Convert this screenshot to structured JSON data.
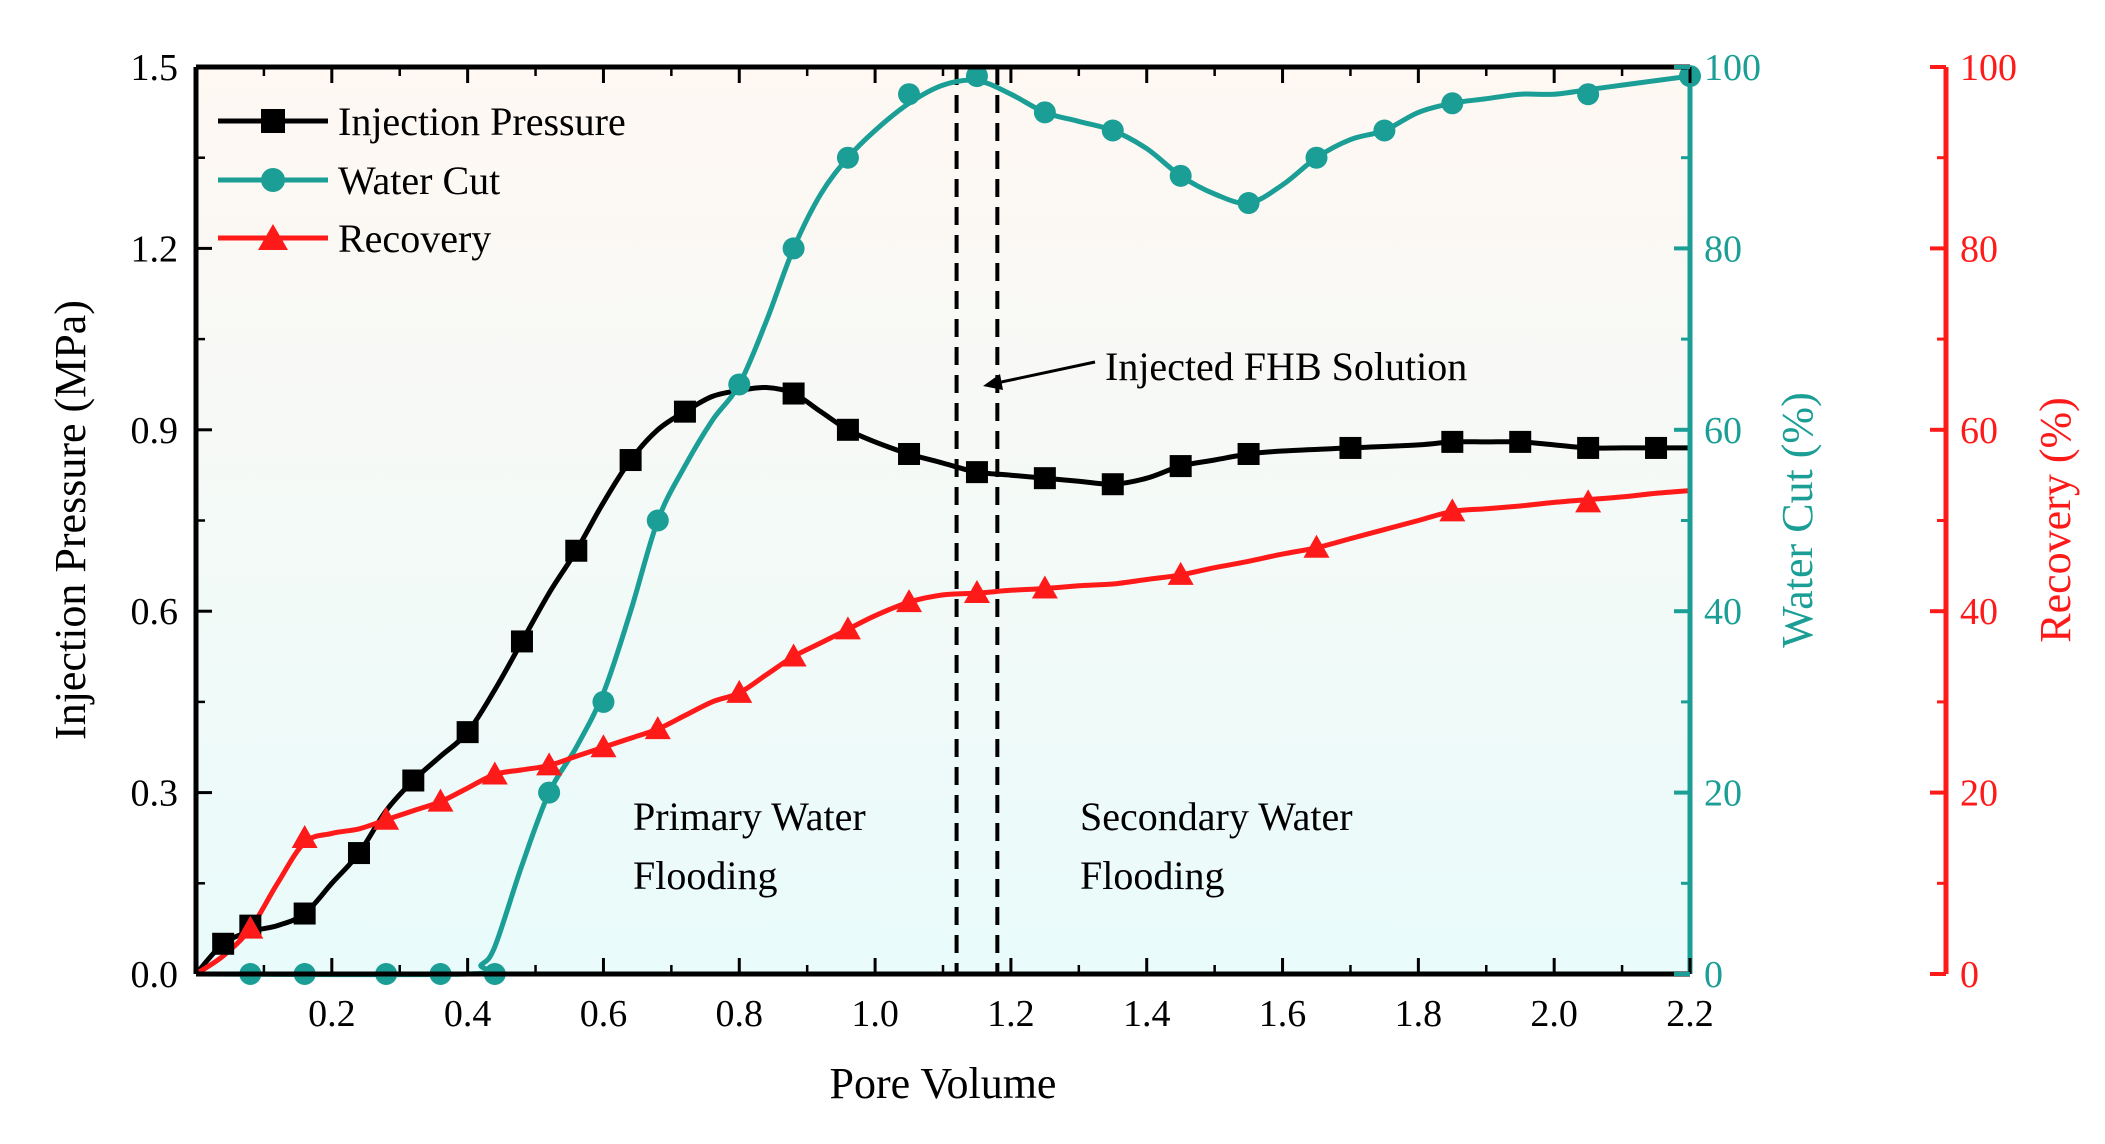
{
  "chart_data": {
    "type": "line",
    "title": "",
    "xlabel": "Pore Volume",
    "xlim": [
      0,
      2.2
    ],
    "xticks": [
      0.2,
      0.4,
      0.6,
      0.8,
      1.0,
      1.2,
      1.4,
      1.6,
      1.8,
      2.0,
      2.2
    ],
    "xtick_labels": [
      "0.2",
      "0.4",
      "0.6",
      "0.8",
      "1.0",
      "1.2",
      "1.4",
      "1.6",
      "1.8",
      "2.0",
      "2.2"
    ],
    "y_axes": {
      "left": {
        "label": "Injection Pressure (MPa)",
        "range": [
          0,
          1.5
        ],
        "ticks": [
          0.0,
          0.3,
          0.6,
          0.9,
          1.2,
          1.5
        ],
        "tick_labels": [
          "0.0",
          "0.3",
          "0.6",
          "0.9",
          "1.2",
          "1.5"
        ],
        "color": "#000000"
      },
      "right1": {
        "label": "Water Cut (%)",
        "range": [
          0,
          100
        ],
        "ticks": [
          0,
          20,
          40,
          60,
          80,
          100
        ],
        "tick_labels": [
          "0",
          "20",
          "40",
          "60",
          "80",
          "100"
        ],
        "color": "#1a9e95"
      },
      "right2": {
        "label": "Recovery (%)",
        "range": [
          0,
          100
        ],
        "ticks": [
          0,
          20,
          40,
          60,
          80,
          100
        ],
        "tick_labels": [
          "0",
          "20",
          "40",
          "60",
          "80",
          "100"
        ],
        "color": "#ff1a1a"
      }
    },
    "series": [
      {
        "name": "Injection Pressure",
        "axis": "left",
        "marker": "square",
        "color": "#000000",
        "x": [
          0.04,
          0.08,
          0.16,
          0.24,
          0.32,
          0.4,
          0.48,
          0.56,
          0.64,
          0.72,
          0.88,
          0.96,
          1.05,
          1.15,
          1.25,
          1.35,
          1.45,
          1.55,
          1.7,
          1.85,
          1.95,
          2.05,
          2.15
        ],
        "values": [
          0.05,
          0.08,
          0.1,
          0.2,
          0.32,
          0.4,
          0.55,
          0.7,
          0.85,
          0.93,
          0.96,
          0.9,
          0.86,
          0.83,
          0.82,
          0.81,
          0.84,
          0.86,
          0.87,
          0.88,
          0.88,
          0.87,
          0.87
        ],
        "curve_x": [
          0.0,
          0.04,
          0.08,
          0.12,
          0.16,
          0.2,
          0.24,
          0.28,
          0.32,
          0.36,
          0.4,
          0.44,
          0.48,
          0.52,
          0.56,
          0.6,
          0.64,
          0.68,
          0.72,
          0.76,
          0.8,
          0.84,
          0.88,
          0.92,
          0.96,
          1.0,
          1.05,
          1.1,
          1.15,
          1.2,
          1.25,
          1.3,
          1.35,
          1.4,
          1.45,
          1.5,
          1.55,
          1.6,
          1.7,
          1.8,
          1.85,
          1.9,
          1.95,
          2.0,
          2.05,
          2.1,
          2.15,
          2.2
        ],
        "curve_y": [
          0.0,
          0.05,
          0.07,
          0.08,
          0.1,
          0.15,
          0.2,
          0.27,
          0.32,
          0.36,
          0.4,
          0.47,
          0.55,
          0.63,
          0.7,
          0.78,
          0.85,
          0.9,
          0.93,
          0.955,
          0.965,
          0.97,
          0.96,
          0.93,
          0.9,
          0.88,
          0.86,
          0.845,
          0.83,
          0.825,
          0.82,
          0.815,
          0.81,
          0.82,
          0.84,
          0.85,
          0.86,
          0.865,
          0.87,
          0.875,
          0.88,
          0.88,
          0.88,
          0.875,
          0.87,
          0.87,
          0.87,
          0.87
        ]
      },
      {
        "name": "Water Cut",
        "axis": "right1",
        "marker": "circle",
        "color": "#1a9e95",
        "x": [
          0.08,
          0.16,
          0.28,
          0.36,
          0.44,
          0.52,
          0.6,
          0.68,
          0.8,
          0.88,
          0.96,
          1.05,
          1.15,
          1.25,
          1.35,
          1.45,
          1.55,
          1.65,
          1.75,
          1.85,
          2.05,
          2.2
        ],
        "values": [
          0,
          0,
          0,
          0,
          0,
          20,
          30,
          50,
          65,
          80,
          90,
          97,
          99,
          95,
          93,
          88,
          85,
          90,
          93,
          96,
          97,
          99
        ],
        "curve_x": [
          0.0,
          0.4,
          0.42,
          0.44,
          0.48,
          0.52,
          0.56,
          0.6,
          0.64,
          0.68,
          0.72,
          0.76,
          0.8,
          0.84,
          0.88,
          0.92,
          0.96,
          1.0,
          1.05,
          1.1,
          1.15,
          1.2,
          1.25,
          1.3,
          1.35,
          1.4,
          1.45,
          1.5,
          1.55,
          1.6,
          1.65,
          1.7,
          1.75,
          1.8,
          1.85,
          1.9,
          1.95,
          2.0,
          2.05,
          2.1,
          2.15,
          2.2
        ],
        "curve_y": [
          0,
          0,
          1,
          3,
          12,
          20,
          25,
          31,
          40,
          50,
          56,
          61,
          65,
          72,
          80,
          86,
          90,
          93,
          96,
          98,
          98.5,
          97,
          95,
          94,
          93,
          91,
          88,
          86,
          85,
          87,
          90,
          92,
          93,
          95,
          96,
          96.5,
          97,
          97,
          97.5,
          98,
          98.5,
          99
        ]
      },
      {
        "name": "Recovery",
        "axis": "right2",
        "marker": "triangle",
        "color": "#ff1a1a",
        "x": [
          0.08,
          0.16,
          0.28,
          0.36,
          0.44,
          0.52,
          0.6,
          0.68,
          0.8,
          0.88,
          0.96,
          1.05,
          1.15,
          1.25,
          1.45,
          1.65,
          1.85,
          2.05
        ],
        "values": [
          5,
          15,
          17,
          19,
          22,
          23,
          25,
          27,
          31,
          35,
          38,
          41,
          42,
          42.5,
          44,
          47,
          51,
          52
        ],
        "curve_x": [
          0.0,
          0.04,
          0.08,
          0.12,
          0.16,
          0.2,
          0.24,
          0.28,
          0.32,
          0.36,
          0.4,
          0.44,
          0.48,
          0.52,
          0.56,
          0.6,
          0.64,
          0.68,
          0.72,
          0.76,
          0.8,
          0.84,
          0.88,
          0.92,
          0.96,
          1.0,
          1.05,
          1.1,
          1.15,
          1.2,
          1.25,
          1.3,
          1.35,
          1.4,
          1.45,
          1.5,
          1.55,
          1.6,
          1.65,
          1.7,
          1.75,
          1.8,
          1.85,
          1.9,
          1.95,
          2.0,
          2.05,
          2.1,
          2.15,
          2.2
        ],
        "curve_y": [
          0,
          2,
          5,
          10,
          14.5,
          15.5,
          16,
          17,
          18,
          19,
          20.5,
          22,
          22.5,
          23,
          24,
          25,
          26,
          27,
          28.5,
          30,
          31,
          33,
          35,
          36.5,
          38,
          39.5,
          41,
          41.8,
          42,
          42.3,
          42.5,
          42.8,
          43,
          43.5,
          44,
          44.8,
          45.5,
          46.3,
          47,
          48,
          49,
          50,
          51,
          51.3,
          51.6,
          52,
          52.3,
          52.6,
          53,
          53.3
        ]
      }
    ],
    "legend": {
      "placement": "top-left",
      "entries": [
        "Injection Pressure",
        "Water Cut",
        "Recovery"
      ]
    },
    "vertical_lines": {
      "x": [
        1.12,
        1.18
      ],
      "style": "dashed",
      "color": "#000000"
    },
    "annotations": {
      "injected": "Injected FHB Solution",
      "primary_line1": "Primary Water",
      "primary_line2": "Flooding",
      "secondary_line1": "Secondary Water",
      "secondary_line2": "Flooding"
    }
  }
}
